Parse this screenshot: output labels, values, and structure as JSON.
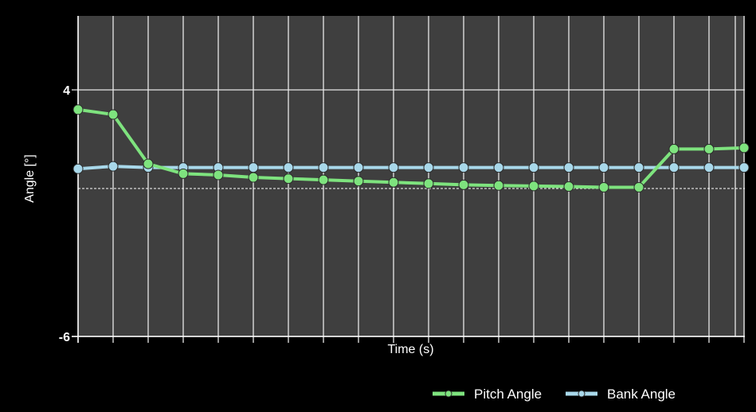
{
  "chart_data": {
    "type": "line",
    "title": "",
    "xlabel": "Time (s)",
    "ylabel": "Angle [°]",
    "ylim": [
      -6,
      7
    ],
    "yticks": [
      4,
      -6
    ],
    "reference_line": 0,
    "grid": true,
    "legend_position": "bottom-right",
    "background_color": "#3f3f3f",
    "series": [
      {
        "name": "Pitch Angle",
        "color": "#7ee37e",
        "values": [
          3.2,
          3.0,
          1.0,
          0.6,
          0.55,
          0.45,
          0.4,
          0.35,
          0.3,
          0.25,
          0.2,
          0.15,
          0.12,
          0.1,
          0.08,
          0.05,
          0.05,
          1.6,
          1.6,
          1.65
        ]
      },
      {
        "name": "Bank Angle",
        "color": "#a8d8ea",
        "values": [
          0.8,
          0.9,
          0.85,
          0.85,
          0.85,
          0.85,
          0.85,
          0.85,
          0.85,
          0.85,
          0.85,
          0.85,
          0.85,
          0.85,
          0.85,
          0.85,
          0.85,
          0.85,
          0.85,
          0.85
        ]
      }
    ]
  }
}
